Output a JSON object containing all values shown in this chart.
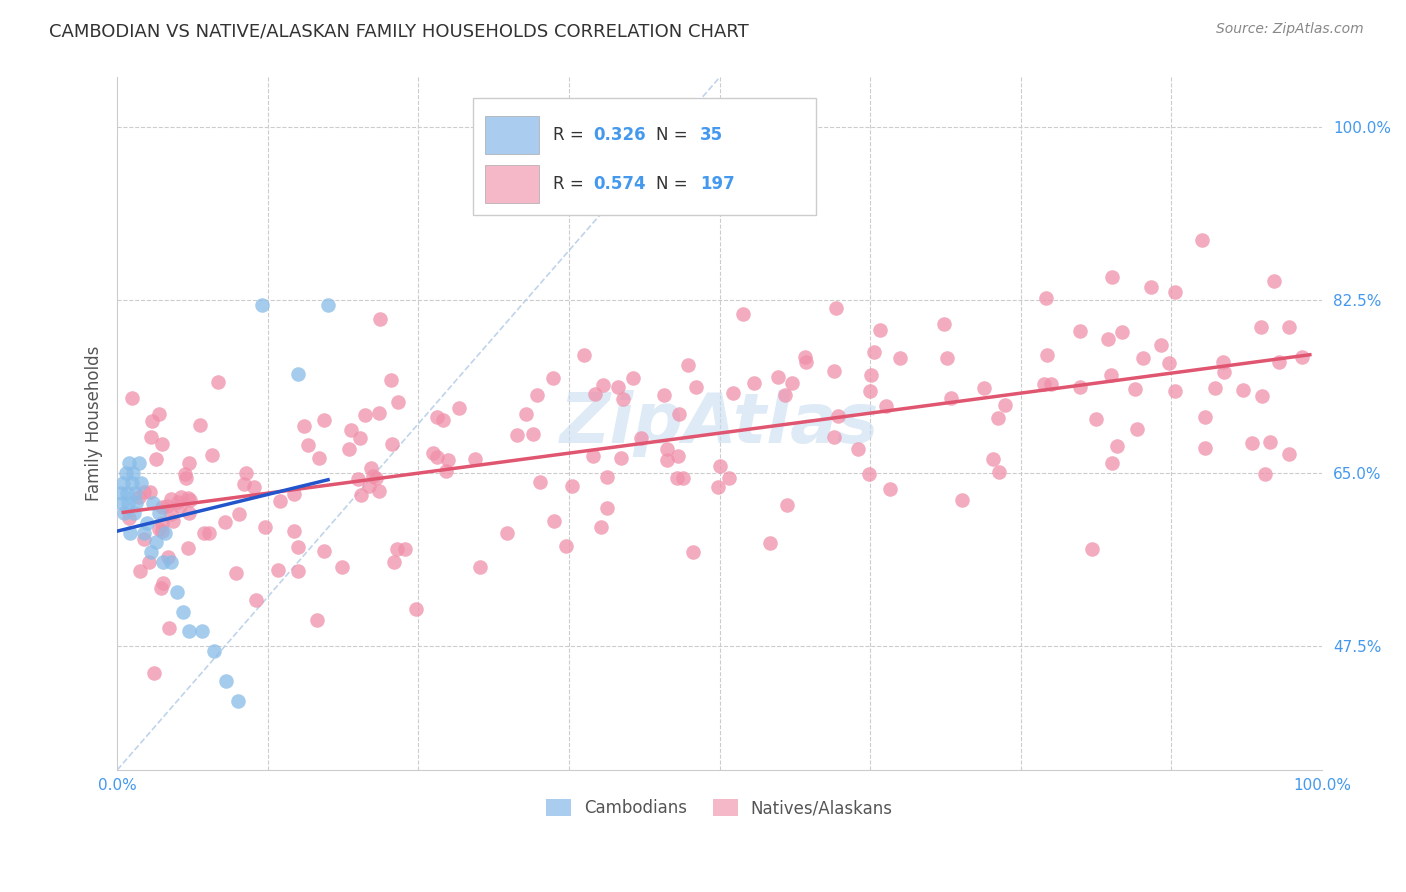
{
  "title": "CAMBODIAN VS NATIVE/ALASKAN FAMILY HOUSEHOLDS CORRELATION CHART",
  "source": "Source: ZipAtlas.com",
  "ylabel": "Family Households",
  "ytick_labels": [
    "100.0%",
    "82.5%",
    "65.0%",
    "47.5%"
  ],
  "ytick_values": [
    1.0,
    0.825,
    0.65,
    0.475
  ],
  "xlim": [
    0.0,
    1.0
  ],
  "ylim": [
    0.35,
    1.05
  ],
  "watermark": "ZipAtlas",
  "cambodian_color": "#88bce8",
  "native_color": "#f090aa",
  "cambodian_trend_color": "#2255cc",
  "native_trend_color": "#e05570",
  "diagonal_color": "#b8cfe8",
  "background_color": "#ffffff",
  "grid_color": "#cccccc",
  "legend_cam_color": "#aaccee",
  "legend_nat_color": "#f4b8c8",
  "R_cam": "0.326",
  "N_cam": "35",
  "R_nat": "0.574",
  "N_nat": "197",
  "title_color": "#333333",
  "source_color": "#888888",
  "axis_label_color": "#555555",
  "tick_color": "#4499ee",
  "watermark_color": "#c8ddf0",
  "legend_text_color": "#333333",
  "bottom_legend_text_color": "#555555"
}
